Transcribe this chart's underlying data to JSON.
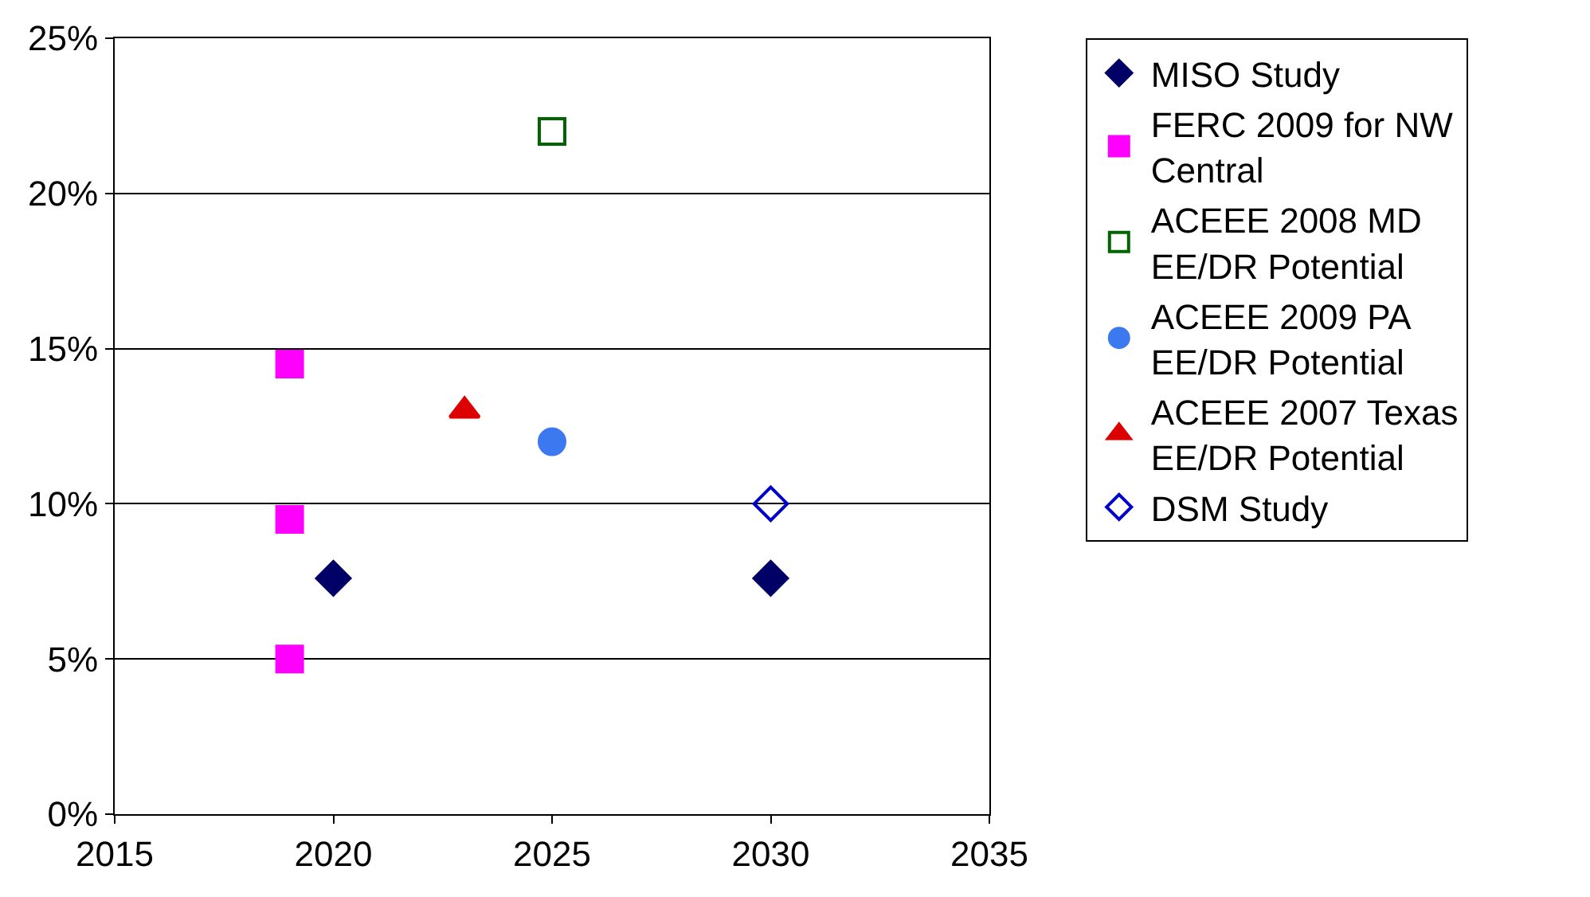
{
  "chart_data": {
    "type": "scatter",
    "xlim": [
      2015,
      2035
    ],
    "xticks": [
      2015,
      2020,
      2025,
      2030,
      2035
    ],
    "ylim": [
      0,
      25
    ],
    "yticks": [
      {
        "value": 0,
        "label": "0%"
      },
      {
        "value": 5,
        "label": "5%"
      },
      {
        "value": 10,
        "label": "10%"
      },
      {
        "value": 15,
        "label": "15%"
      },
      {
        "value": 20,
        "label": "20%"
      },
      {
        "value": 25,
        "label": "25%"
      }
    ],
    "grid": "y",
    "legend": "right",
    "series": [
      {
        "name": "MISO Study",
        "color": "#000066",
        "marker": "diamond",
        "x": [
          2020,
          2030
        ],
        "values": [
          7.6,
          7.6
        ]
      },
      {
        "name": "FERC 2009 for NW Central",
        "color": "#ff00ff",
        "marker": "square",
        "x": [
          2019,
          2019,
          2019
        ],
        "values": [
          14.5,
          9.5,
          5.0
        ]
      },
      {
        "name": "ACEEE 2008 MD EE/DR Potential",
        "color": "#006400",
        "marker": "square-open",
        "x": [
          2025
        ],
        "values": [
          22
        ]
      },
      {
        "name": "ACEEE 2009 PA EE/DR Potential",
        "color": "#3c78f0",
        "marker": "circle",
        "x": [
          2025
        ],
        "values": [
          12
        ]
      },
      {
        "name": "ACEEE 2007 Texas EE/DR Potential",
        "color": "#dd0000",
        "marker": "triangle-up",
        "x": [
          2023
        ],
        "values": [
          13
        ]
      },
      {
        "name": "DSM Study",
        "color": "#0000cc",
        "marker": "diamond-open",
        "x": [
          2030
        ],
        "values": [
          10
        ]
      }
    ]
  }
}
